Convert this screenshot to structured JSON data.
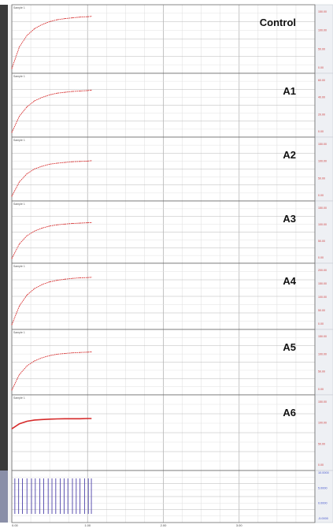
{
  "chart_data": [
    {
      "type": "line",
      "title": "Control",
      "channel_label": "Sample 1",
      "x_tick_labels": [
        "0.00",
        "1.00",
        "2.00",
        "3.00"
      ],
      "right_tick_labels": [
        "150.00",
        "100.00",
        "50.00",
        "0.00"
      ],
      "series": [
        {
          "x": [
            0.0,
            0.1,
            0.2,
            0.3,
            0.4,
            0.5,
            0.6,
            0.7,
            0.8,
            0.9,
            1.0,
            1.05
          ],
          "values": [
            0,
            58,
            89,
            107,
            118,
            126,
            131,
            134,
            136,
            138,
            139,
            140
          ]
        }
      ]
    },
    {
      "type": "line",
      "title": "A1",
      "channel_label": "Sample 1",
      "x_tick_labels": [
        "0.00",
        "1.00",
        "2.00",
        "3.00"
      ],
      "right_tick_labels": [
        "60.00",
        "40.00",
        "20.00",
        "0.00"
      ],
      "series": [
        {
          "x": [
            0.0,
            0.1,
            0.2,
            0.3,
            0.4,
            0.5,
            0.6,
            0.7,
            0.8,
            0.9,
            1.0,
            1.05
          ],
          "values": [
            0,
            19,
            30,
            37,
            41,
            44,
            46,
            47,
            48,
            48.5,
            49,
            49.5
          ]
        }
      ]
    },
    {
      "type": "line",
      "title": "A2",
      "channel_label": "Sample 1",
      "x_tick_labels": [
        "0.00",
        "1.00",
        "2.00",
        "3.00"
      ],
      "right_tick_labels": [
        "150.00",
        "100.00",
        "50.00",
        "0.00"
      ],
      "series": [
        {
          "x": [
            0.0,
            0.1,
            0.2,
            0.3,
            0.4,
            0.5,
            0.6,
            0.7,
            0.8,
            0.9,
            1.0,
            1.05
          ],
          "values": [
            0,
            42,
            66,
            80,
            88,
            94,
            97,
            99,
            101,
            102,
            103,
            104
          ]
        }
      ]
    },
    {
      "type": "line",
      "title": "A3",
      "channel_label": "Sample 1",
      "x_tick_labels": [
        "0.00",
        "1.00",
        "2.00",
        "3.00"
      ],
      "right_tick_labels": [
        "150.00",
        "100.00",
        "50.00",
        "0.00"
      ],
      "series": [
        {
          "x": [
            0.0,
            0.1,
            0.2,
            0.3,
            0.4,
            0.5,
            0.6,
            0.7,
            0.8,
            0.9,
            1.0,
            1.05
          ],
          "values": [
            0,
            44,
            69,
            83,
            92,
            98,
            102,
            104,
            106,
            107,
            108,
            108.5
          ]
        }
      ]
    },
    {
      "type": "line",
      "title": "A4",
      "channel_label": "Sample 1",
      "x_tick_labels": [
        "0.00",
        "1.00",
        "2.00",
        "3.00"
      ],
      "right_tick_labels": [
        "200.00",
        "150.00",
        "100.00",
        "50.00",
        "0.00"
      ],
      "series": [
        {
          "x": [
            0.0,
            0.1,
            0.2,
            0.3,
            0.4,
            0.5,
            0.6,
            0.7,
            0.8,
            0.9,
            1.0,
            1.05
          ],
          "values": [
            0,
            70,
            111,
            135,
            150,
            160,
            166,
            170,
            173,
            175,
            176,
            177
          ]
        }
      ]
    },
    {
      "type": "line",
      "title": "A5",
      "channel_label": "Sample 1",
      "x_tick_labels": [
        "0.00",
        "1.00",
        "2.00",
        "3.00"
      ],
      "right_tick_labels": [
        "150.00",
        "100.00",
        "50.00",
        "0.00"
      ],
      "series": [
        {
          "x": [
            0.0,
            0.1,
            0.2,
            0.3,
            0.4,
            0.5,
            0.6,
            0.7,
            0.8,
            0.9,
            1.0,
            1.05
          ],
          "values": [
            0,
            44,
            69,
            83,
            92,
            98,
            102,
            104,
            106,
            107,
            108,
            108.5
          ]
        }
      ]
    },
    {
      "type": "line",
      "title": "A6",
      "channel_label": "Sample 1",
      "x_tick_labels": [
        "0.00",
        "1.00",
        "2.00",
        "3.00"
      ],
      "right_tick_labels": [
        "150.00",
        "100.00",
        "50.00",
        "0.00"
      ],
      "series": [
        {
          "x": [
            0.0,
            0.1,
            0.2,
            0.3,
            0.4,
            0.5,
            0.6,
            0.7,
            0.8,
            0.9,
            1.0,
            1.05
          ],
          "values": [
            88,
            100,
            106,
            109,
            110,
            111,
            111.5,
            112,
            112,
            112,
            112.5,
            112.5
          ]
        }
      ]
    }
  ],
  "stimulus": {
    "right_tick_labels": [
      "10.0000",
      "5.0000",
      "0.0000",
      "-5.0000"
    ],
    "x_tick_labels": [
      "0.00",
      "1.00",
      "2.00",
      "3.00"
    ],
    "pulse_times": [
      0.04,
      0.09,
      0.14,
      0.2,
      0.26,
      0.31,
      0.37,
      0.42,
      0.48,
      0.53,
      0.58,
      0.64,
      0.69,
      0.74,
      0.8,
      0.85,
      0.9,
      0.96,
      1.01,
      1.05
    ]
  },
  "colors": {
    "trace": "#d62a2a",
    "label": "#d04040",
    "pulse": "#4a3fa8",
    "stim_label": "#4455cc",
    "grid_major": "#b8b8b8",
    "grid_minor": "#e2e2e2",
    "side_bar": "#3a3a3a",
    "axis_strip": "#eef0f4"
  }
}
